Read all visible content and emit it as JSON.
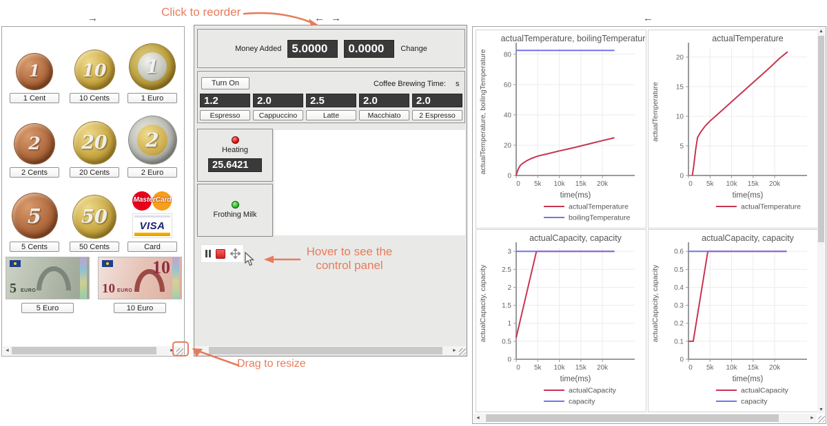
{
  "colors": {
    "accent": "#e87b5a",
    "display_bg": "#3a3a3a",
    "series_red": "#c8334f",
    "series_blue": "#7272ee"
  },
  "icons": {
    "arrow_right": "→",
    "arrow_left": "←",
    "scroll_left": "◄",
    "scroll_right": "►",
    "scroll_up": "▲",
    "scroll_down": "▼"
  },
  "annotations": {
    "reorder": "Click to reorder",
    "hover_line1": "Hover to see the",
    "hover_line2": "control panel",
    "resize": "Drag to resize"
  },
  "left_panel": {
    "items": [
      {
        "label": "1 Cent",
        "kind": "coin-copper",
        "value": "1"
      },
      {
        "label": "10 Cents",
        "kind": "coin-gold",
        "value": "10"
      },
      {
        "label": "1 Euro",
        "kind": "coin-euro1",
        "value": "1"
      },
      {
        "label": "2 Cents",
        "kind": "coin-copper",
        "value": "2"
      },
      {
        "label": "20 Cents",
        "kind": "coin-gold",
        "value": "20"
      },
      {
        "label": "2 Euro",
        "kind": "coin-euro2",
        "value": "2"
      },
      {
        "label": "5 Cents",
        "kind": "coin-copper",
        "value": "5"
      },
      {
        "label": "50 Cents",
        "kind": "coin-gold",
        "value": "50"
      },
      {
        "label": "Card",
        "kind": "card"
      },
      {
        "label": "5 Euro",
        "kind": "note5",
        "value": "5",
        "unit": "EURO"
      },
      {
        "label": "10 Euro",
        "kind": "note10",
        "value": "10",
        "unit": "EURO"
      }
    ],
    "card": {
      "mastercard": "MasterCard",
      "visa": "VISA"
    }
  },
  "machine": {
    "money_added_label": "Money Added",
    "money_added_value": "5.0000",
    "change_value": "0.0000",
    "change_label": "Change",
    "turn_on": "Turn On",
    "brew_time_label": "Coffee Brewing Time:",
    "brew_time_unit": "s",
    "drinks": [
      {
        "price": "1.2",
        "name": "Espresso"
      },
      {
        "price": "2.0",
        "name": "Cappuccino"
      },
      {
        "price": "2.5",
        "name": "Latte"
      },
      {
        "price": "2.0",
        "name": "Macchiato"
      },
      {
        "price": "2.0",
        "name": "2 Espresso"
      }
    ],
    "heating_label": "Heating",
    "temperature_value": "25.6421",
    "frothing_label": "Frothing Milk"
  },
  "chart_data": [
    {
      "type": "line",
      "title": "actualTemperature, boilingTemperature",
      "xlabel": "time(ms)",
      "ylabel": "actualTemperature, boilingTemperature",
      "xlim": [
        0,
        27500
      ],
      "ylim": [
        0,
        84
      ],
      "grid": true,
      "legend_position": "bottom",
      "xticks": [
        0,
        5000,
        10000,
        15000,
        20000
      ],
      "xtick_labels": [
        "0",
        "5k",
        "10k",
        "15k",
        "20k"
      ],
      "yticks": [
        0,
        20,
        40,
        60,
        80
      ],
      "ytick_labels": [
        "0",
        "20",
        "40",
        "60",
        "80"
      ],
      "series": [
        {
          "name": "actualTemperature",
          "color": "#c8334f",
          "points": [
            [
              0,
              0
            ],
            [
              250,
              2.5
            ],
            [
              600,
              5
            ],
            [
              1000,
              6.8
            ],
            [
              1600,
              8.2
            ],
            [
              2500,
              9.8
            ],
            [
              3500,
              11.2
            ],
            [
              5000,
              12.8
            ],
            [
              6500,
              13.8
            ],
            [
              8000,
              14.8
            ],
            [
              10000,
              16.2
            ],
            [
              12000,
              17.5
            ],
            [
              14000,
              18.8
            ],
            [
              16000,
              20.2
            ],
            [
              18000,
              21.6
            ],
            [
              20000,
              23
            ],
            [
              22800,
              24.9
            ]
          ]
        },
        {
          "name": "boilingTemperature",
          "color": "#7272ee",
          "points": [
            [
              0,
              82.5
            ],
            [
              22800,
              82.5
            ]
          ]
        }
      ]
    },
    {
      "type": "line",
      "title": "actualTemperature",
      "xlabel": "time(ms)",
      "ylabel": "actualTemperature",
      "xlim": [
        0,
        27500
      ],
      "ylim": [
        0,
        21.5
      ],
      "grid": true,
      "legend_position": "bottom",
      "xticks": [
        0,
        5000,
        10000,
        15000,
        20000
      ],
      "xtick_labels": [
        "0",
        "5k",
        "10k",
        "15k",
        "20k"
      ],
      "yticks": [
        0,
        5,
        10,
        15,
        20
      ],
      "ytick_labels": [
        "0",
        "5",
        "10",
        "15",
        "20"
      ],
      "series": [
        {
          "name": "actualTemperature",
          "color": "#c8334f",
          "points": [
            [
              900,
              0
            ],
            [
              1200,
              1.5
            ],
            [
              1700,
              4.5
            ],
            [
              2100,
              6.4
            ],
            [
              2800,
              7.3
            ],
            [
              3800,
              8.3
            ],
            [
              5000,
              9.2
            ],
            [
              7000,
              10.5
            ],
            [
              9000,
              11.8
            ],
            [
              11000,
              13.1
            ],
            [
              13000,
              14.4
            ],
            [
              15000,
              15.7
            ],
            [
              17000,
              17
            ],
            [
              19000,
              18.3
            ],
            [
              21000,
              19.7
            ],
            [
              23000,
              20.9
            ]
          ]
        }
      ]
    },
    {
      "type": "line",
      "title": "actualCapacity, capacity",
      "xlabel": "time(ms)",
      "ylabel": "actualCapacity, capacity",
      "xlim": [
        0,
        27500
      ],
      "ylim": [
        0,
        3.1
      ],
      "grid": true,
      "legend_position": "bottom",
      "xticks": [
        0,
        5000,
        10000,
        15000,
        20000
      ],
      "xtick_labels": [
        "0",
        "5k",
        "10k",
        "15k",
        "20k"
      ],
      "yticks": [
        0,
        0.5,
        1,
        1.5,
        2,
        2.5,
        3
      ],
      "ytick_labels": [
        "0",
        "0.5",
        "1",
        "1.5",
        "2",
        "2.5",
        "3"
      ],
      "series": [
        {
          "name": "actualCapacity",
          "color": "#c8334f",
          "points": [
            [
              0,
              0.6
            ],
            [
              4700,
              3
            ],
            [
              22800,
              3
            ]
          ]
        },
        {
          "name": "capacity",
          "color": "#7272ee",
          "points": [
            [
              0,
              3
            ],
            [
              22800,
              3
            ]
          ]
        }
      ]
    },
    {
      "type": "line",
      "title": "actualCapacity, capacity",
      "xlabel": "time(ms)",
      "ylabel": "actualCapacity, capacity",
      "xlim": [
        0,
        27500
      ],
      "ylim": [
        0,
        0.62
      ],
      "grid": true,
      "legend_position": "bottom",
      "xticks": [
        0,
        5000,
        10000,
        15000,
        20000
      ],
      "xtick_labels": [
        "0",
        "5k",
        "10k",
        "15k",
        "20k"
      ],
      "yticks": [
        0,
        0.1,
        0.2,
        0.3,
        0.4,
        0.5,
        0.6
      ],
      "ytick_labels": [
        "0",
        "0.1",
        "0.2",
        "0.3",
        "0.4",
        "0.5",
        "0.6"
      ],
      "series": [
        {
          "name": "actualCapacity",
          "color": "#c8334f",
          "points": [
            [
              0,
              0.1
            ],
            [
              1100,
              0.1
            ],
            [
              4500,
              0.6
            ],
            [
              22800,
              0.6
            ]
          ]
        },
        {
          "name": "capacity",
          "color": "#7272ee",
          "points": [
            [
              0,
              0.6
            ],
            [
              22800,
              0.6
            ]
          ]
        }
      ]
    }
  ]
}
